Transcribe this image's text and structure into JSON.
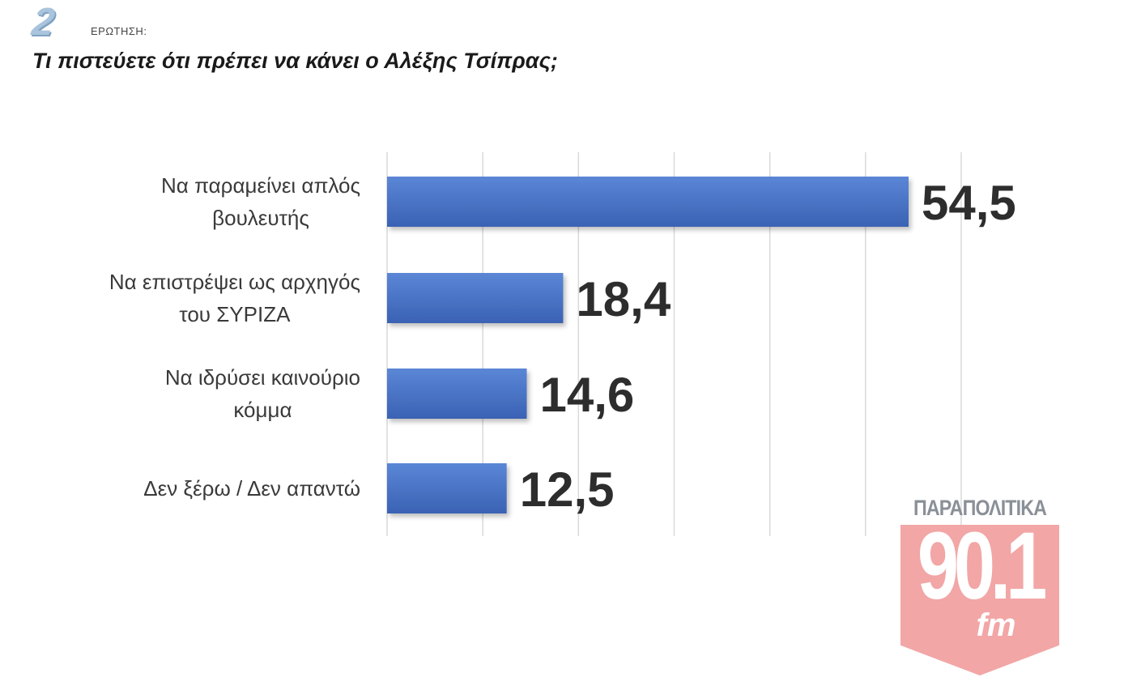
{
  "header": {
    "question_number": "2",
    "question_label": "ΕΡΩΤΗΣΗ:",
    "title": "Τι πιστεύετε ότι πρέπει να κάνει ο Αλέξης Τσίπρας;"
  },
  "chart_data": {
    "type": "bar",
    "orientation": "horizontal",
    "title": "Τι πιστεύετε ότι πρέπει να κάνει ο Αλέξης Τσίπρας;",
    "categories": [
      [
        "Να παραμείνει απλός",
        "βουλευτής"
      ],
      [
        "Να επιστρέψει ως αρχηγός",
        "του ΣΥΡΙΖΑ"
      ],
      [
        "Να ιδρύσει καινούριο",
        "κόμμα"
      ],
      [
        "Δεν ξέρω / Δεν απαντώ"
      ]
    ],
    "values": [
      54.5,
      18.4,
      14.6,
      12.5
    ],
    "value_labels": [
      "54,5",
      "18,4",
      "14,6",
      "12,5"
    ],
    "xlim": [
      0,
      60
    ],
    "grid": true,
    "bar_color": "#4472c4",
    "bar_color_dark": "#3055a4",
    "xlabel": "",
    "ylabel": ""
  },
  "logo": {
    "top_text": "ΠΑΡΑΠΟΛΙΤΙΚΑ",
    "frequency": "90.1",
    "band": "fm",
    "color": "#f2a6a6"
  }
}
